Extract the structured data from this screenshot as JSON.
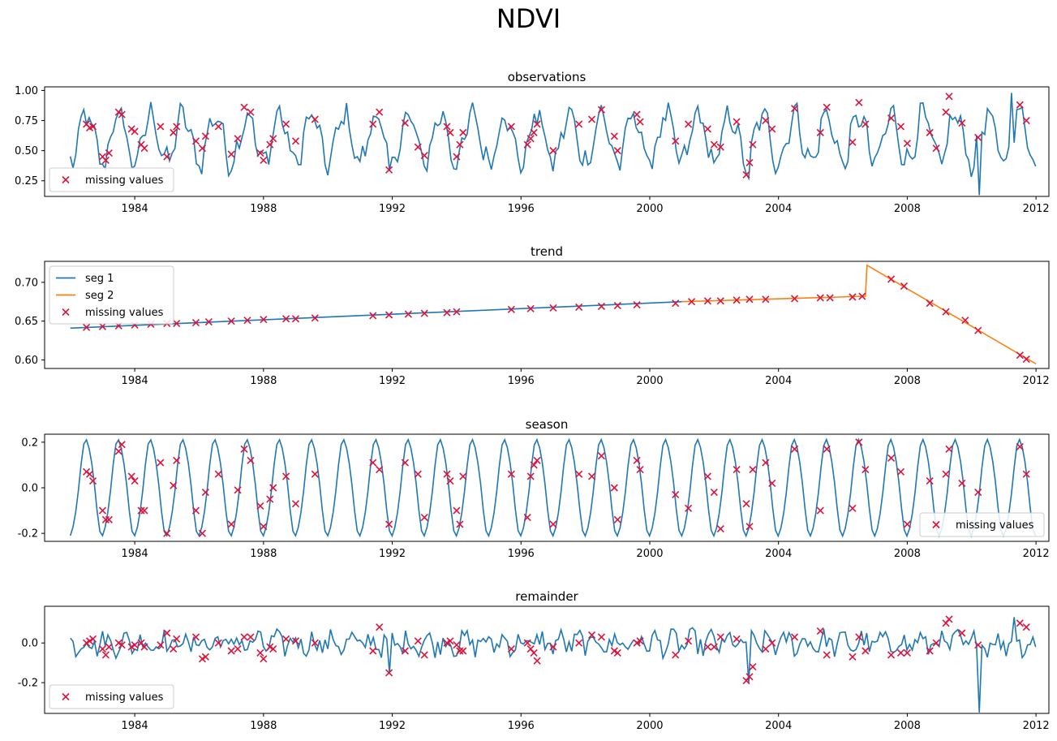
{
  "figure": {
    "suptitle": "NDVI",
    "colors": {
      "line_blue": "#1f77b4",
      "line_orange": "#ff7f0e",
      "marker_red": "#dc143c",
      "axis": "#000000"
    }
  },
  "chart_data": [
    {
      "type": "line",
      "title": "observations",
      "xlabel": "",
      "ylabel": "",
      "xlim": [
        1981.2,
        2012.4
      ],
      "ylim": [
        0.12,
        1.03
      ],
      "x_ticks": [
        "1984",
        "1988",
        "1992",
        "1996",
        "2000",
        "2004",
        "2008",
        "2012"
      ],
      "y_ticks": [
        "0.25",
        "0.50",
        "0.75",
        "1.00"
      ],
      "y_tick_values": [
        0.25,
        0.5,
        0.75,
        1.0
      ],
      "legend": {
        "entries": [
          "missing values"
        ],
        "placement": "lower-left"
      },
      "series": [
        {
          "kind": "signal",
          "line": "blue",
          "x_start": 1982.0,
          "x_end": 2012.0,
          "step": 0.0833,
          "mean": 0.6,
          "amplitude": 0.2,
          "noise": 0.08,
          "notable_points": [
            [
              1991.9,
              0.34
            ],
            [
              2003.1,
              0.27
            ],
            [
              2010.2,
              0.13
            ],
            [
              2011.2,
              0.98
            ],
            [
              2012.0,
              0.37
            ]
          ]
        },
        {
          "name": "missing values",
          "kind": "scatter",
          "x": [
            1982.5,
            1982.6,
            1982.7,
            1983.0,
            1983.1,
            1983.2,
            1983.5,
            1983.6,
            1983.9,
            1984.0,
            1984.2,
            1984.3,
            1984.8,
            1985.0,
            1985.2,
            1985.3,
            1985.9,
            1986.1,
            1986.2,
            1986.6,
            1987.0,
            1987.2,
            1987.4,
            1987.6,
            1987.9,
            1988.0,
            1988.2,
            1988.3,
            1988.7,
            1989.0,
            1989.6,
            1991.4,
            1991.6,
            1991.9,
            1992.4,
            1992.8,
            1993.0,
            1993.7,
            1993.8,
            1994.0,
            1994.1,
            1994.2,
            1995.7,
            1996.2,
            1996.3,
            1996.4,
            1996.5,
            1997.0,
            1997.8,
            1998.2,
            1998.5,
            1998.9,
            1999.0,
            1999.6,
            1999.7,
            2000.8,
            2001.2,
            2001.8,
            2002.0,
            2002.2,
            2002.7,
            2003.0,
            2003.1,
            2003.2,
            2003.6,
            2003.8,
            2004.5,
            2005.3,
            2005.5,
            2006.3,
            2006.5,
            2006.7,
            2007.5,
            2007.8,
            2008.0,
            2008.7,
            2008.9,
            2009.2,
            2009.3,
            2009.7,
            2010.2,
            2011.5,
            2011.7
          ],
          "y": [
            0.72,
            0.69,
            0.7,
            0.45,
            0.42,
            0.48,
            0.82,
            0.8,
            0.68,
            0.66,
            0.55,
            0.52,
            0.7,
            0.45,
            0.65,
            0.7,
            0.58,
            0.52,
            0.62,
            0.7,
            0.47,
            0.6,
            0.86,
            0.82,
            0.48,
            0.42,
            0.55,
            0.6,
            0.72,
            0.58,
            0.76,
            0.72,
            0.82,
            0.34,
            0.73,
            0.53,
            0.46,
            0.7,
            0.65,
            0.45,
            0.55,
            0.65,
            0.7,
            0.55,
            0.6,
            0.65,
            0.72,
            0.5,
            0.72,
            0.76,
            0.84,
            0.62,
            0.5,
            0.8,
            0.74,
            0.58,
            0.72,
            0.68,
            0.55,
            0.53,
            0.74,
            0.3,
            0.4,
            0.55,
            0.75,
            0.68,
            0.85,
            0.65,
            0.86,
            0.57,
            0.9,
            0.72,
            0.77,
            0.7,
            0.56,
            0.65,
            0.52,
            0.82,
            0.95,
            0.73,
            0.61,
            0.88,
            0.75
          ]
        }
      ]
    },
    {
      "type": "line",
      "title": "trend",
      "xlabel": "",
      "ylabel": "",
      "xlim": [
        1981.2,
        2012.4
      ],
      "ylim": [
        0.589,
        0.727
      ],
      "x_ticks": [
        "1984",
        "1988",
        "1992",
        "1996",
        "2000",
        "2004",
        "2008",
        "2012"
      ],
      "y_ticks": [
        "0.60",
        "0.65",
        "0.70"
      ],
      "y_tick_values": [
        0.6,
        0.65,
        0.7
      ],
      "legend": {
        "entries": [
          "seg 1",
          "seg 2",
          "missing values"
        ],
        "placement": "upper-left"
      },
      "series": [
        {
          "name": "seg 1",
          "kind": "line",
          "line": "blue",
          "x": [
            1982.0,
            2001.0
          ],
          "y": [
            0.641,
            0.675
          ]
        },
        {
          "name": "seg 2",
          "kind": "line",
          "line": "orange",
          "x": [
            2001.0,
            2006.7,
            2006.7,
            2006.75,
            2012.0
          ],
          "y": [
            0.675,
            0.682,
            0.682,
            0.722,
            0.595
          ]
        },
        {
          "name": "missing values",
          "kind": "scatter",
          "x": [
            1982.5,
            1983.0,
            1983.5,
            1984.0,
            1984.5,
            1985.0,
            1985.3,
            1985.9,
            1986.3,
            1987.0,
            1987.5,
            1988.0,
            1988.7,
            1989.0,
            1989.6,
            1991.4,
            1991.9,
            1992.5,
            1993.0,
            1993.7,
            1994.0,
            1995.7,
            1996.3,
            1997.0,
            1997.8,
            1998.5,
            1999.0,
            1999.6,
            2000.8,
            2001.3,
            2001.8,
            2002.2,
            2002.7,
            2003.1,
            2003.6,
            2004.5,
            2005.3,
            2005.6,
            2006.3,
            2006.6,
            2007.5,
            2007.9,
            2008.7,
            2009.2,
            2009.8,
            2010.2,
            2011.5,
            2011.7
          ],
          "y": [
            0.642,
            0.643,
            0.644,
            0.645,
            0.646,
            0.647,
            0.647,
            0.648,
            0.649,
            0.65,
            0.651,
            0.652,
            0.653,
            0.653,
            0.654,
            0.657,
            0.658,
            0.659,
            0.66,
            0.661,
            0.662,
            0.665,
            0.666,
            0.667,
            0.668,
            0.669,
            0.67,
            0.671,
            0.673,
            0.675,
            0.676,
            0.676,
            0.677,
            0.678,
            0.678,
            0.679,
            0.68,
            0.68,
            0.681,
            0.682,
            0.704,
            0.695,
            0.673,
            0.662,
            0.651,
            0.638,
            0.606,
            0.601
          ]
        }
      ]
    },
    {
      "type": "line",
      "title": "season",
      "xlabel": "",
      "ylabel": "",
      "xlim": [
        1981.2,
        2012.4
      ],
      "ylim": [
        -0.235,
        0.235
      ],
      "x_ticks": [
        "1984",
        "1988",
        "1992",
        "1996",
        "2000",
        "2004",
        "2008",
        "2012"
      ],
      "y_ticks": [
        "-0.2",
        "0.0",
        "0.2"
      ],
      "y_tick_values": [
        -0.2,
        0.0,
        0.2
      ],
      "legend": {
        "entries": [
          "missing values"
        ],
        "placement": "lower-right"
      },
      "series": [
        {
          "kind": "signal",
          "line": "blue",
          "x_start": 1982.0,
          "x_end": 2012.0,
          "step": 0.0833,
          "amplitude": 0.21,
          "period": 1.0,
          "peak_phase": 0.5
        },
        {
          "name": "missing values",
          "kind": "scatter",
          "x": [
            1982.5,
            1982.6,
            1982.7,
            1983.0,
            1983.1,
            1983.2,
            1983.5,
            1983.6,
            1983.9,
            1984.0,
            1984.2,
            1984.3,
            1984.8,
            1985.0,
            1985.2,
            1985.3,
            1985.9,
            1986.1,
            1986.2,
            1986.6,
            1987.0,
            1987.2,
            1987.4,
            1987.6,
            1987.9,
            1988.0,
            1988.2,
            1988.3,
            1988.7,
            1989.0,
            1989.6,
            1991.4,
            1991.6,
            1991.9,
            1992.4,
            1992.8,
            1993.0,
            1993.7,
            1993.8,
            1994.0,
            1994.1,
            1994.2,
            1995.7,
            1996.2,
            1996.3,
            1996.4,
            1996.5,
            1997.0,
            1997.8,
            1998.2,
            1998.5,
            1998.9,
            1999.0,
            1999.6,
            1999.7,
            2000.8,
            2001.2,
            2001.8,
            2002.0,
            2002.2,
            2002.7,
            2003.0,
            2003.1,
            2003.2,
            2003.6,
            2003.8,
            2004.5,
            2005.3,
            2005.5,
            2006.3,
            2006.5,
            2006.7,
            2007.5,
            2007.8,
            2008.0,
            2008.7,
            2008.9,
            2009.2,
            2009.3,
            2009.7,
            2010.2,
            2011.5,
            2011.7
          ],
          "y": [
            0.07,
            0.06,
            0.03,
            -0.1,
            -0.14,
            -0.14,
            0.16,
            0.19,
            0.05,
            0.03,
            -0.1,
            -0.1,
            0.11,
            -0.2,
            0.01,
            0.12,
            -0.1,
            -0.2,
            -0.02,
            0.06,
            -0.16,
            -0.01,
            0.17,
            0.12,
            -0.08,
            -0.17,
            -0.05,
            0.0,
            0.05,
            -0.07,
            0.06,
            0.11,
            0.08,
            -0.16,
            0.11,
            0.06,
            -0.13,
            0.06,
            0.03,
            -0.1,
            -0.16,
            0.05,
            0.06,
            -0.13,
            0.05,
            0.1,
            0.12,
            -0.16,
            0.06,
            0.05,
            0.14,
            0.0,
            -0.14,
            0.12,
            0.08,
            -0.03,
            -0.09,
            0.05,
            -0.02,
            -0.18,
            0.08,
            -0.07,
            -0.17,
            0.08,
            0.11,
            0.02,
            0.17,
            -0.1,
            0.17,
            -0.09,
            0.2,
            0.08,
            0.13,
            0.07,
            -0.16,
            0.03,
            -0.16,
            0.06,
            0.17,
            0.02,
            -0.02,
            0.18,
            0.06
          ]
        }
      ]
    },
    {
      "type": "line",
      "title": "remainder",
      "xlabel": "",
      "ylabel": "",
      "xlim": [
        1981.2,
        2012.4
      ],
      "ylim": [
        -0.355,
        0.185
      ],
      "x_ticks": [
        "1984",
        "1988",
        "1992",
        "1996",
        "2000",
        "2004",
        "2008",
        "2012"
      ],
      "y_ticks": [
        "-0.2",
        "0.0"
      ],
      "y_tick_values": [
        -0.2,
        0.0
      ],
      "legend": {
        "entries": [
          "missing values"
        ],
        "placement": "lower-left"
      },
      "series": [
        {
          "kind": "signal",
          "line": "blue",
          "x_start": 1982.0,
          "x_end": 2012.0,
          "step": 0.0833,
          "noise": 0.05,
          "notable_points": [
            [
              1991.9,
              -0.15
            ],
            [
              2003.1,
              -0.2
            ],
            [
              2010.2,
              -0.35
            ],
            [
              2011.3,
              0.13
            ],
            [
              2012.0,
              -0.02
            ]
          ]
        },
        {
          "name": "missing values",
          "kind": "scatter",
          "x": [
            1982.5,
            1982.6,
            1982.7,
            1983.0,
            1983.1,
            1983.2,
            1983.5,
            1983.6,
            1983.9,
            1984.0,
            1984.2,
            1984.3,
            1984.8,
            1985.0,
            1985.2,
            1985.3,
            1985.9,
            1986.1,
            1986.2,
            1986.6,
            1987.0,
            1987.2,
            1987.4,
            1987.6,
            1987.9,
            1988.0,
            1988.2,
            1988.3,
            1988.7,
            1989.0,
            1989.6,
            1991.4,
            1991.6,
            1991.9,
            1992.4,
            1992.8,
            1993.0,
            1993.7,
            1993.8,
            1994.0,
            1994.1,
            1994.2,
            1995.7,
            1996.2,
            1996.3,
            1996.4,
            1996.5,
            1997.0,
            1997.8,
            1998.2,
            1998.5,
            1998.9,
            1999.0,
            1999.6,
            1999.7,
            2000.8,
            2001.2,
            2001.8,
            2002.0,
            2002.2,
            2002.7,
            2003.0,
            2003.1,
            2003.2,
            2003.6,
            2003.8,
            2004.5,
            2005.3,
            2005.5,
            2006.3,
            2006.5,
            2006.7,
            2007.5,
            2007.8,
            2008.0,
            2008.7,
            2008.9,
            2009.2,
            2009.3,
            2009.7,
            2010.2,
            2011.5,
            2011.7
          ],
          "y": [
            0.0,
            0.01,
            0.02,
            -0.03,
            -0.06,
            -0.02,
            0.0,
            -0.01,
            -0.02,
            -0.01,
            0.0,
            -0.02,
            -0.01,
            0.05,
            -0.03,
            0.02,
            0.03,
            -0.08,
            -0.07,
            0.0,
            -0.04,
            -0.03,
            0.03,
            0.03,
            -0.05,
            -0.08,
            -0.02,
            -0.03,
            0.02,
            0.01,
            0.0,
            -0.04,
            0.08,
            -0.15,
            -0.04,
            0.01,
            -0.06,
            0.0,
            0.01,
            -0.01,
            -0.04,
            -0.04,
            -0.03,
            0.0,
            -0.03,
            -0.05,
            -0.09,
            -0.02,
            0.0,
            0.04,
            0.03,
            -0.04,
            -0.05,
            0.0,
            0.01,
            -0.06,
            0.01,
            -0.02,
            -0.02,
            0.03,
            0.02,
            -0.19,
            -0.17,
            -0.12,
            -0.03,
            0.0,
            0.03,
            0.06,
            -0.06,
            -0.07,
            0.03,
            -0.04,
            -0.06,
            -0.05,
            -0.05,
            -0.04,
            0.0,
            0.1,
            0.12,
            0.05,
            -0.01,
            0.1,
            0.08
          ]
        }
      ]
    }
  ]
}
